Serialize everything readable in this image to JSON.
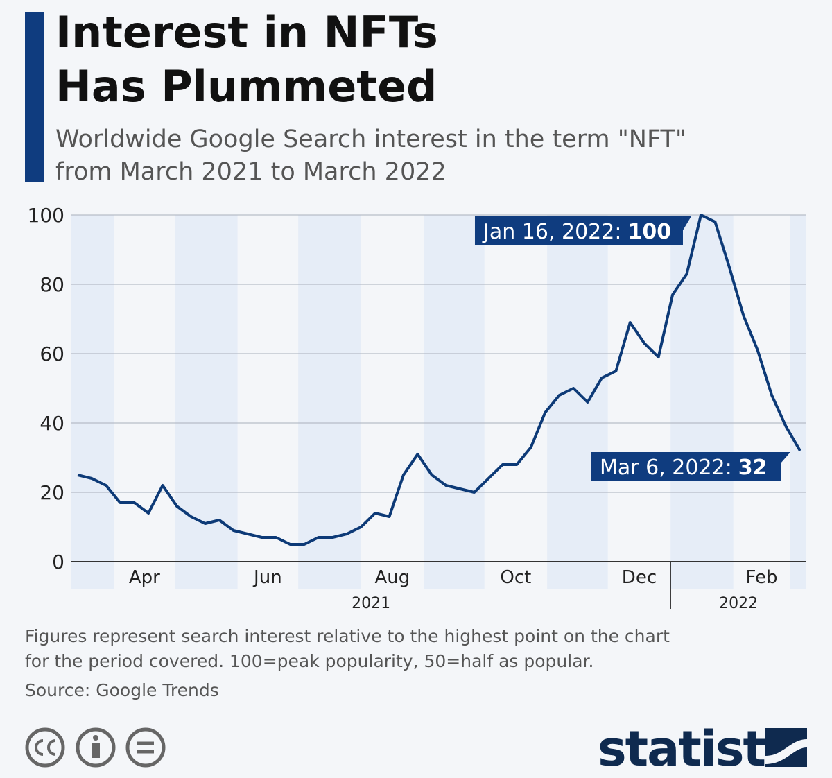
{
  "chart_data": {
    "type": "line",
    "title": [
      "Interest in NFTs",
      "Has Plummeted"
    ],
    "subtitle": [
      "Worldwide Google Search interest in the term \"NFT\"",
      "from March 2021 to March 2022"
    ],
    "x": [
      "2021-03-14",
      "2021-03-21",
      "2021-03-28",
      "2021-04-04",
      "2021-04-11",
      "2021-04-18",
      "2021-04-25",
      "2021-05-02",
      "2021-05-09",
      "2021-05-16",
      "2021-05-23",
      "2021-05-30",
      "2021-06-06",
      "2021-06-13",
      "2021-06-20",
      "2021-06-27",
      "2021-07-04",
      "2021-07-11",
      "2021-07-18",
      "2021-07-25",
      "2021-08-01",
      "2021-08-08",
      "2021-08-15",
      "2021-08-22",
      "2021-08-29",
      "2021-09-05",
      "2021-09-12",
      "2021-09-19",
      "2021-09-26",
      "2021-10-03",
      "2021-10-10",
      "2021-10-17",
      "2021-10-24",
      "2021-10-31",
      "2021-11-07",
      "2021-11-14",
      "2021-11-21",
      "2021-11-28",
      "2021-12-05",
      "2021-12-12",
      "2021-12-19",
      "2021-12-26",
      "2022-01-02",
      "2022-01-09",
      "2022-01-16",
      "2022-01-23",
      "2022-01-30",
      "2022-02-06",
      "2022-02-13",
      "2022-02-20",
      "2022-02-27",
      "2022-03-06"
    ],
    "series": [
      {
        "color": "#0d3a77",
        "values": [
          25,
          24,
          22,
          17,
          17,
          14,
          22,
          16,
          13,
          11,
          12,
          9,
          8,
          7,
          7,
          5,
          5,
          7,
          7,
          8,
          10,
          14,
          13,
          25,
          31,
          25,
          22,
          21,
          20,
          24,
          28,
          28,
          33,
          43,
          48,
          50,
          46,
          53,
          55,
          69,
          63,
          59,
          77,
          83,
          100,
          98,
          85,
          71,
          61,
          48,
          39,
          32
        ]
      }
    ],
    "ylim": [
      0,
      100
    ],
    "yticks": [
      0,
      20,
      40,
      60,
      80,
      100
    ],
    "xticks": [
      {
        "value": "2021-04",
        "label": "Apr"
      },
      {
        "value": "2021-06",
        "label": "Jun"
      },
      {
        "value": "2021-08",
        "label": "Aug"
      },
      {
        "value": "2021-10",
        "label": "Oct"
      },
      {
        "value": "2021-12",
        "label": "Dec"
      },
      {
        "value": "2022-02",
        "label": "Feb"
      }
    ],
    "years": [
      "2021",
      "2022"
    ],
    "grid": true,
    "annotations": [
      "Jan 16, 2022:",
      "Mar 6, 2022:"
    ],
    "notes": [
      "Figures represent search interest relative to the highest point on the chart",
      "for the period covered. 100=peak popularity, 50=half as popular."
    ],
    "source": "Source: Google Trends",
    "brand": "statista"
  }
}
